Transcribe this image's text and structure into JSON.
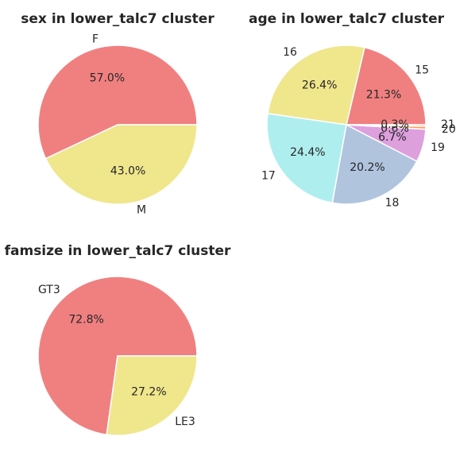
{
  "chart_data": [
    {
      "type": "pie",
      "title": "sex in lower_talc7 cluster",
      "slices": [
        {
          "label": "F",
          "value": 57.0,
          "pct_label": "57.0%",
          "color": "#f08080"
        },
        {
          "label": "M",
          "value": 43.0,
          "pct_label": "43.0%",
          "color": "#f0e68c"
        }
      ]
    },
    {
      "type": "pie",
      "title": "age in lower_talc7 cluster",
      "slices": [
        {
          "label": "15",
          "value": 21.3,
          "pct_label": "21.3%",
          "color": "#f08080"
        },
        {
          "label": "16",
          "value": 26.4,
          "pct_label": "26.4%",
          "color": "#f0e68c"
        },
        {
          "label": "17",
          "value": 24.4,
          "pct_label": "24.4%",
          "color": "#afeeee"
        },
        {
          "label": "18",
          "value": 20.2,
          "pct_label": "20.2%",
          "color": "#b0c4de"
        },
        {
          "label": "19",
          "value": 6.7,
          "pct_label": "6.7%",
          "color": "#dda0dd"
        },
        {
          "label": "20",
          "value": 0.6,
          "pct_label": "0.6%",
          "color": "#f4a460"
        },
        {
          "label": "21",
          "value": 0.3,
          "pct_label": "0.3%",
          "color": "#cd5c5c"
        }
      ]
    },
    {
      "type": "pie",
      "title": "famsize in lower_talc7 cluster",
      "slices": [
        {
          "label": "GT3",
          "value": 72.8,
          "pct_label": "72.8%",
          "color": "#f08080"
        },
        {
          "label": "LE3",
          "value": 27.2,
          "pct_label": "27.2%",
          "color": "#f0e68c"
        }
      ]
    }
  ]
}
